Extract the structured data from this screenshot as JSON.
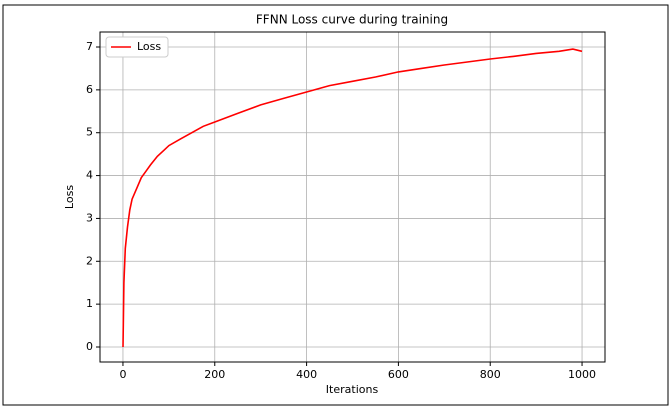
{
  "chart_data": {
    "type": "line",
    "title": "FFNN Loss curve during training",
    "x_label": "Iterations",
    "y_label": "Loss",
    "x": [
      0,
      2,
      5,
      10,
      15,
      20,
      30,
      40,
      50,
      60,
      75,
      90,
      100,
      125,
      150,
      175,
      200,
      250,
      300,
      350,
      400,
      450,
      500,
      550,
      600,
      650,
      700,
      750,
      800,
      850,
      900,
      950,
      980,
      1000
    ],
    "series": [
      {
        "name": "Loss",
        "color": "#ff0000",
        "values": [
          0,
          1.5,
          2.3,
          2.8,
          3.2,
          3.45,
          3.7,
          3.95,
          4.1,
          4.25,
          4.45,
          4.6,
          4.7,
          4.85,
          5.0,
          5.15,
          5.25,
          5.45,
          5.65,
          5.8,
          5.95,
          6.1,
          6.2,
          6.3,
          6.42,
          6.5,
          6.58,
          6.65,
          6.72,
          6.78,
          6.85,
          6.9,
          6.95,
          6.9
        ]
      }
    ],
    "xlim": [
      -50,
      1050
    ],
    "ylim": [
      -0.35,
      7.35
    ],
    "xticks": [
      0,
      200,
      400,
      600,
      800,
      1000
    ],
    "yticks": [
      0,
      1,
      2,
      3,
      4,
      5,
      6,
      7
    ],
    "grid": true,
    "legend": "upper-left"
  }
}
